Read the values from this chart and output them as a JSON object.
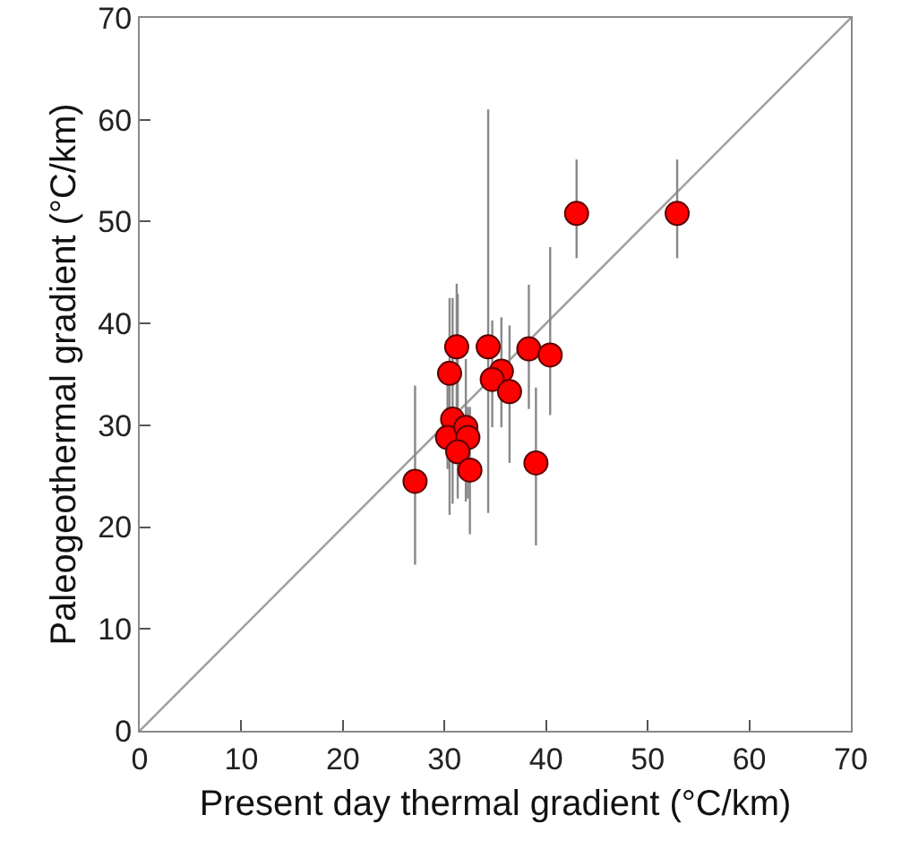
{
  "chart_data": {
    "type": "scatter",
    "xlabel": "Present day thermal gradient (°C/km)",
    "ylabel": "Paleogeothermal gradient (°C/km)",
    "xlim": [
      0,
      70
    ],
    "ylim": [
      0,
      70
    ],
    "xticks": [
      0,
      10,
      20,
      30,
      40,
      50,
      60,
      70
    ],
    "yticks": [
      0,
      10,
      20,
      30,
      40,
      50,
      60,
      70
    ],
    "grid": false,
    "marker": "circle",
    "series": [
      {
        "type": "line",
        "color": "#a0a0a0",
        "x": [
          0,
          70
        ],
        "values": [
          0,
          70
        ],
        "marker": "none"
      },
      {
        "color": "#ff0000",
        "x": [
          27.1,
          31.2,
          34.3,
          38.3,
          40.4,
          43.0,
          52.9,
          30.5,
          35.6,
          34.7,
          36.4,
          30.8,
          30.3,
          32.1,
          32.3,
          31.3,
          32.5,
          39.0
        ],
        "values": [
          24.5,
          37.7,
          37.7,
          37.5,
          36.9,
          50.8,
          50.8,
          35.1,
          35.3,
          34.5,
          33.3,
          30.6,
          28.8,
          29.8,
          28.8,
          27.4,
          25.6,
          26.3
        ],
        "errors": [
          [
            16.3,
            33.9
          ],
          [
            31,
            43.9
          ],
          [
            21.4,
            61.0
          ],
          [
            31.6,
            43.8
          ],
          [
            31.0,
            47.5
          ],
          [
            46.4,
            56.1
          ],
          [
            46.4,
            56.1
          ],
          [
            21.2,
            42.5
          ],
          [
            29.8,
            40.6
          ],
          [
            29.8,
            40.3
          ],
          [
            26.3,
            39.8
          ],
          [
            22.3,
            42.5
          ],
          [
            25.7,
            34.5
          ],
          [
            22.5,
            36.5
          ],
          [
            22.8,
            31.8
          ],
          [
            22.8,
            42.9
          ],
          [
            19.3,
            31.8
          ],
          [
            18.2,
            33.7
          ]
        ]
      }
    ]
  }
}
